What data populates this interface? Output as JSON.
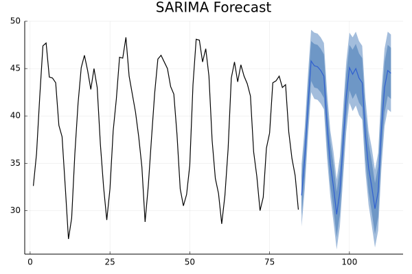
{
  "chart_data": {
    "type": "line",
    "title": "SARIMA Forecast",
    "xlim": [
      -1.7,
      116.8
    ],
    "ylim": [
      25.4,
      50.0
    ],
    "xticks": [
      0,
      25,
      50,
      75,
      100
    ],
    "yticks": [
      30,
      35,
      40,
      45,
      50
    ],
    "grid": true,
    "series": [
      {
        "color": "#000000",
        "x": [
          1,
          2,
          3,
          4,
          5,
          6,
          7,
          8,
          9,
          10,
          11,
          12,
          13,
          14,
          15,
          16,
          17,
          18,
          19,
          20,
          21,
          22,
          23,
          24,
          25,
          26,
          27,
          28,
          29,
          30,
          31,
          32,
          33,
          34,
          35,
          36,
          37,
          38,
          39,
          40,
          41,
          42,
          43,
          44,
          45,
          46,
          47,
          48,
          49,
          50,
          51,
          52,
          53,
          54,
          55,
          56,
          57,
          58,
          59,
          60,
          61,
          62,
          63,
          64,
          65,
          66,
          67,
          68,
          69,
          70,
          71,
          72,
          73,
          74,
          75,
          76,
          77,
          78,
          79,
          80,
          81,
          82,
          83,
          84
        ],
        "values": [
          32.6,
          36,
          42,
          47.4,
          47.7,
          44.1,
          44,
          43.5,
          39,
          37.8,
          32.5,
          27,
          29.2,
          36,
          41.3,
          45.1,
          46.4,
          44.8,
          42.8,
          45,
          43,
          37,
          32.5,
          29,
          32.3,
          38.4,
          41.8,
          46.2,
          46.1,
          48.3,
          44.2,
          42.3,
          40.4,
          37.8,
          34.6,
          28.8,
          32.6,
          37.6,
          42.4,
          46,
          46.4,
          45.7,
          45,
          43.1,
          42.3,
          38,
          32.3,
          30.5,
          31.7,
          34.8,
          43.3,
          48.1,
          48,
          45.7,
          47.1,
          44.2,
          37.4,
          33.4,
          31.8,
          28.6,
          31.6,
          36.5,
          44,
          45.7,
          43.6,
          45.4,
          44.2,
          43.4,
          42.1,
          36.2,
          33.6,
          30,
          31.4,
          36.6,
          38.2,
          43.5,
          43.7,
          44.2,
          43,
          43.3,
          38.3,
          35.5,
          33.7,
          30.1
        ]
      },
      {
        "color": "#2f5fd0",
        "x": [
          85,
          86,
          87,
          88,
          89,
          90,
          91,
          92,
          93,
          94,
          95,
          96,
          97,
          98,
          99,
          100,
          101,
          102,
          103,
          104,
          105,
          106,
          107,
          108,
          109,
          110,
          111,
          112,
          113
        ],
        "values": [
          31.6,
          35.5,
          41,
          45.8,
          45.3,
          45.2,
          44.8,
          44.2,
          39,
          35,
          32.5,
          29.6,
          32,
          37,
          42,
          45.1,
          44.4,
          45,
          44,
          43.5,
          38,
          34.5,
          32.5,
          30.2,
          32,
          38.5,
          43,
          44.8,
          44.5
        ],
        "bands": [
          {
            "color": "#a3bddc",
            "lower": [
              28.3,
              32.2,
              37.7,
              42.5,
              41.8,
              41.7,
              41.3,
              40.7,
              35.5,
              31.5,
              28.8,
              25.9,
              28.3,
              33.3,
              38.3,
              41.4,
              40.5,
              41.1,
              40.1,
              39.6,
              34.1,
              30.6,
              28.4,
              26.1,
              27.9,
              34.4,
              38.9,
              40.7,
              40.4
            ],
            "upper": [
              34.9,
              38.8,
              44.3,
              49.1,
              48.8,
              48.7,
              48.3,
              47.7,
              42.5,
              38.5,
              36.2,
              33.3,
              35.7,
              40.7,
              45.7,
              48.8,
              48.3,
              48.9,
              47.9,
              47.4,
              41.9,
              38.4,
              36.6,
              34.3,
              36.1,
              42.6,
              47.1,
              48.9,
              48.6
            ]
          },
          {
            "color": "#6e97c6",
            "lower": [
              29.5,
              33.4,
              38.9,
              43.7,
              43,
              42.9,
              42.5,
              41.9,
              36.7,
              32.7,
              30.1,
              27.2,
              29.6,
              34.6,
              39.6,
              42.7,
              41.8,
              42.4,
              41.4,
              40.9,
              35.4,
              31.9,
              29.8,
              27.5,
              29.3,
              35.8,
              40.3,
              42.1,
              41.8
            ],
            "upper": [
              33.7,
              37.6,
              43.1,
              47.9,
              47.6,
              47.5,
              47.1,
              46.5,
              41.3,
              37.3,
              34.9,
              32,
              34.4,
              39.4,
              44.4,
              47.5,
              47,
              47.6,
              46.6,
              46.1,
              40.6,
              37.1,
              35.2,
              32.9,
              34.7,
              41.2,
              45.7,
              47.5,
              47.2
            ]
          }
        ]
      }
    ]
  }
}
